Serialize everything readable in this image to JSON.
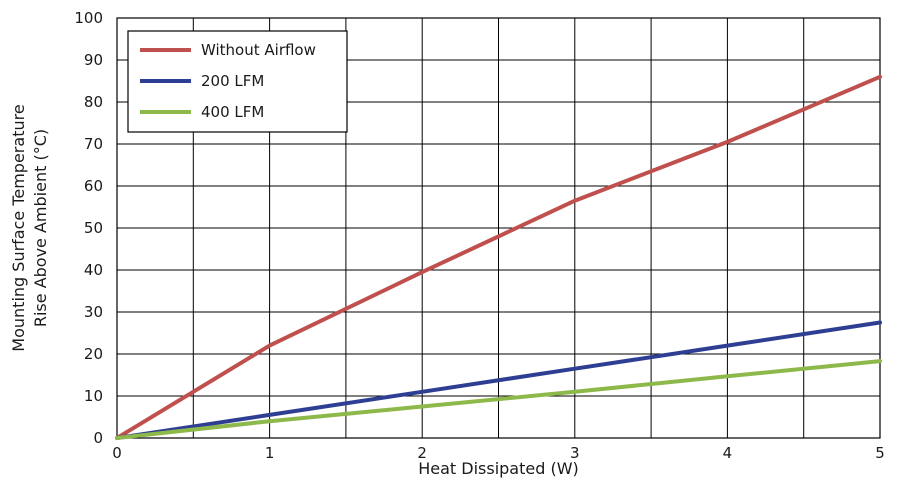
{
  "chart_data": {
    "type": "line",
    "title": "",
    "xlabel": "Heat Dissipated (W)",
    "ylabel": [
      "Mounting Surface Temperature",
      "Rise Above  Ambient (°C)"
    ],
    "xlim": [
      0,
      5
    ],
    "ylim": [
      0,
      100
    ],
    "x_ticks": [
      0,
      1,
      2,
      3,
      4,
      5
    ],
    "y_ticks": [
      0,
      10,
      20,
      30,
      40,
      50,
      60,
      70,
      80,
      90,
      100
    ],
    "grid": true,
    "x_grid_step": 0.5,
    "y_grid_step": 10,
    "legend_position": "top-left",
    "series": [
      {
        "name": "Without Airflow",
        "color": "#c0504d",
        "points": [
          [
            0,
            0
          ],
          [
            1,
            22
          ],
          [
            2,
            39.5
          ],
          [
            3,
            56.5
          ],
          [
            4,
            70.5
          ],
          [
            5,
            86
          ]
        ]
      },
      {
        "name": "200 LFM",
        "color": "#2e3f93",
        "points": [
          [
            0,
            0
          ],
          [
            1,
            5.5
          ],
          [
            2,
            11
          ],
          [
            3,
            16.5
          ],
          [
            4,
            22
          ],
          [
            5,
            27.5
          ]
        ]
      },
      {
        "name": "400 LFM",
        "color": "#8db84a",
        "points": [
          [
            0,
            0
          ],
          [
            1,
            4
          ],
          [
            2,
            7.5
          ],
          [
            3,
            11
          ],
          [
            4,
            14.7
          ],
          [
            5,
            18.3
          ]
        ]
      }
    ]
  }
}
